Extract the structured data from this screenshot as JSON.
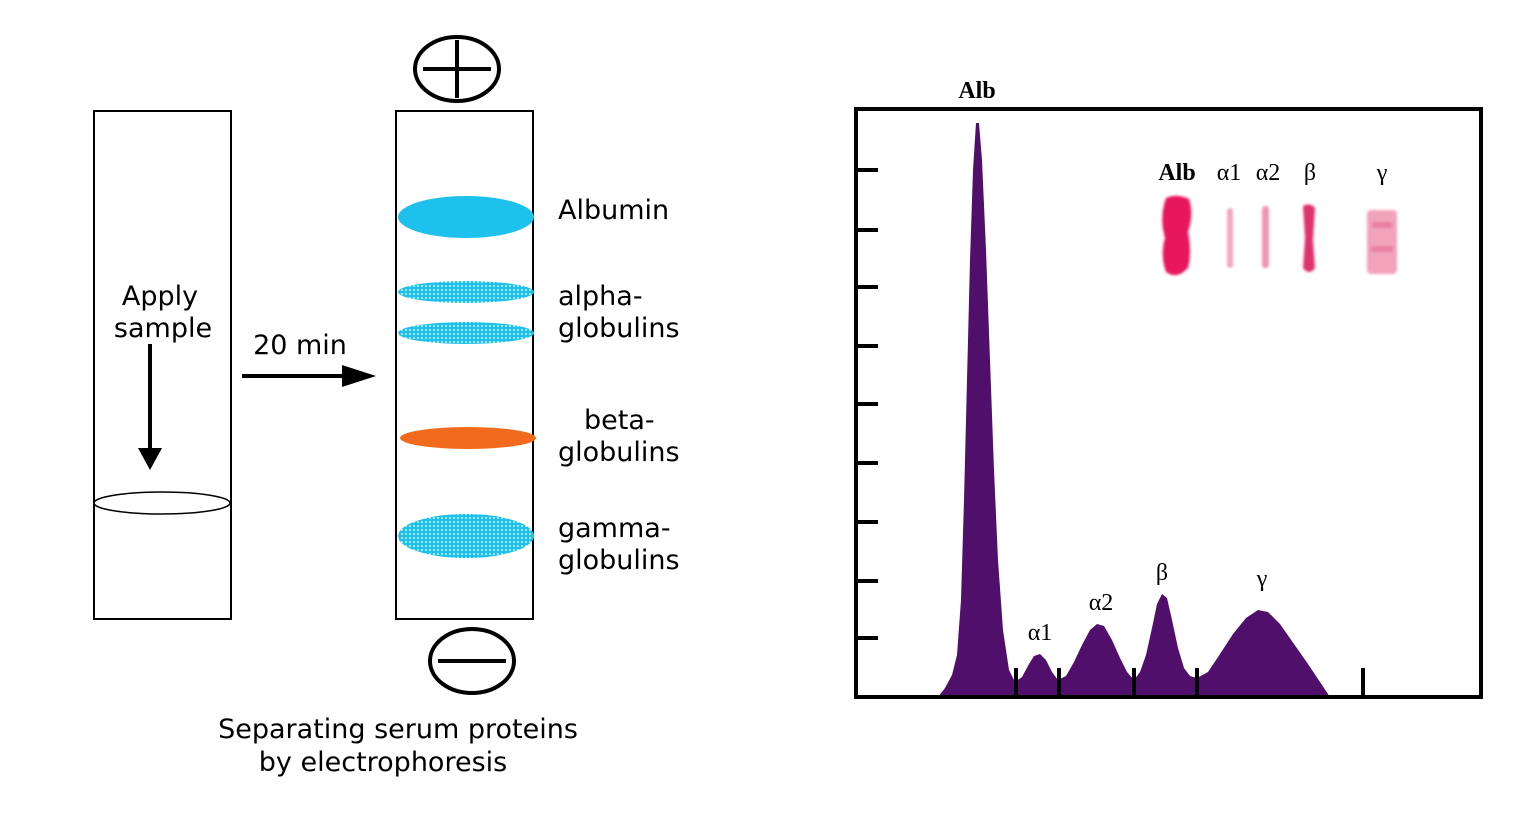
{
  "left_diagram": {
    "apply_sample": [
      "Apply",
      "sample"
    ],
    "time_label": "20 min",
    "plus_symbol": "+",
    "minus_symbol": "−",
    "bands": [
      {
        "lines": [
          "Albumin"
        ],
        "color": "#1ec0ec",
        "style": "solid"
      },
      {
        "lines": [
          "alpha-",
          "globulins"
        ],
        "color": "#1ec0ec",
        "style": "dotted"
      },
      {
        "lines": [
          "beta-",
          "globulins"
        ],
        "color": "#f26a1b",
        "style": "solid"
      },
      {
        "lines": [
          "gamma-",
          "globulins"
        ],
        "color": "#1ec0ec",
        "style": "dotted"
      }
    ],
    "caption": [
      "Separating serum proteins",
      "by electrophoresis"
    ]
  },
  "right_chart": {
    "peak_labels": [
      "Alb",
      "α1",
      "α2",
      "β",
      "γ"
    ],
    "gel_labels": [
      "Alb",
      "α1",
      "α2",
      "β",
      "γ"
    ],
    "curve_color": "#4f0f6b",
    "gel_color": "#e8195c"
  }
}
